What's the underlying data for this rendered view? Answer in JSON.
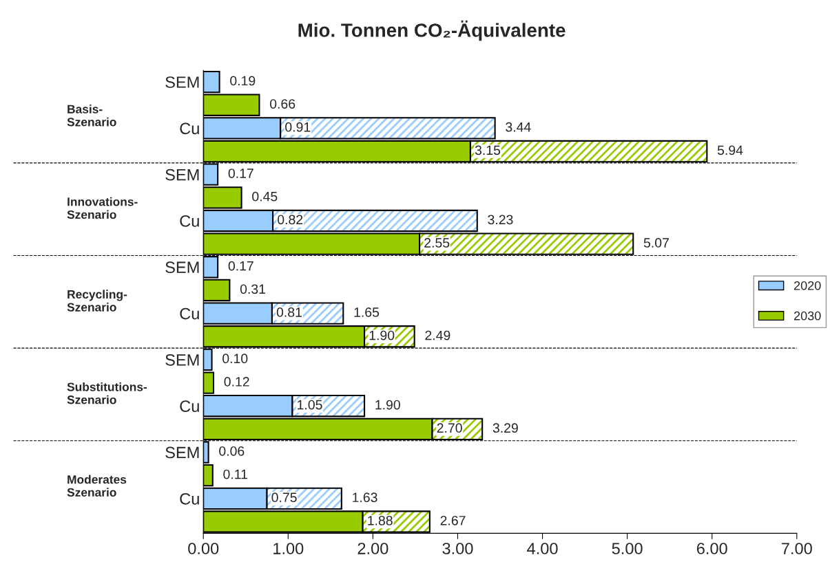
{
  "chart_data": {
    "type": "bar",
    "orientation": "horizontal",
    "stacked": true,
    "title": "Mio. Tonnen CO₂-Äquivalente",
    "categories": [
      "SEM",
      null,
      "Cu",
      null,
      "SEM",
      null,
      "Cu",
      null,
      "SEM",
      null,
      "Cu",
      null,
      "SEM",
      null,
      "Cu",
      null,
      "SEM",
      null,
      "Cu",
      null
    ],
    "series": [
      {
        "name": "2020",
        "color": "#99ccff",
        "values": [
          0.19,
          null,
          0.91,
          null,
          0.17,
          null,
          0.82,
          null,
          0.17,
          null,
          0.81,
          null,
          0.1,
          null,
          1.05,
          null,
          0.06,
          null,
          0.75,
          null
        ],
        "value_labels": [
          null,
          null,
          "0.91",
          null,
          null,
          null,
          "0.82",
          null,
          null,
          null,
          "0.81",
          null,
          null,
          null,
          "1.05",
          null,
          null,
          null,
          "0.75",
          null
        ]
      },
      {
        "color": "#99ccff",
        "values": [
          null,
          null,
          2.53,
          null,
          null,
          null,
          2.41,
          null,
          null,
          null,
          0.84,
          null,
          null,
          null,
          0.85,
          null,
          null,
          null,
          0.88,
          null
        ]
      },
      {
        "name": "2030",
        "color": "#99cc00",
        "values": [
          null,
          0.66,
          null,
          3.15,
          null,
          0.45,
          null,
          2.55,
          null,
          0.31,
          null,
          1.9,
          null,
          0.12,
          null,
          2.7,
          null,
          0.11,
          null,
          1.88
        ],
        "value_labels": [
          null,
          null,
          null,
          "3.15",
          null,
          null,
          null,
          "2.55",
          null,
          null,
          null,
          "1.90",
          null,
          null,
          null,
          "2.70",
          null,
          null,
          null,
          "1.88"
        ]
      },
      {
        "color": "#99cc00",
        "values": [
          null,
          null,
          null,
          2.79,
          null,
          null,
          null,
          2.52,
          null,
          null,
          null,
          0.59,
          null,
          null,
          null,
          0.59,
          null,
          null,
          null,
          0.79
        ]
      }
    ],
    "totals": [
      "0.19",
      "0.66",
      "3.44",
      "5.94",
      "0.17",
      "0.45",
      "3.23",
      "5.07",
      "0.17",
      "0.31",
      "1.65",
      "2.49",
      "0.10",
      "0.12",
      "1.90",
      "3.29",
      "0.06",
      "0.11",
      "1.63",
      "2.67"
    ],
    "xlim": [
      0,
      7
    ],
    "xticks": [
      {
        "value": 0,
        "label": "0.00"
      },
      {
        "value": 1,
        "label": "1.00"
      },
      {
        "value": 2,
        "label": "2.00"
      },
      {
        "value": 3,
        "label": "3.00"
      },
      {
        "value": 4,
        "label": "4.00"
      },
      {
        "value": 5,
        "label": "5.00"
      },
      {
        "value": 6,
        "label": "6.00"
      },
      {
        "value": 7,
        "label": "7.00"
      }
    ],
    "annotations": [
      "Basis-\nSzenario",
      "Innovations-\nSzenario",
      "Recycling-\nSzenario",
      "Substitutions-\nSzenario",
      "Moderates\nSzenario"
    ],
    "legend": "right",
    "grid": false
  }
}
